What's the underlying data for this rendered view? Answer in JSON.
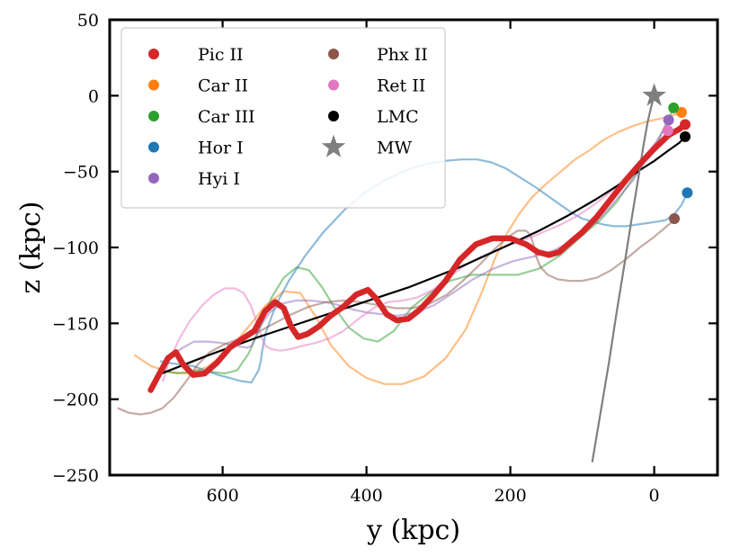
{
  "chart_data": {
    "type": "line",
    "xlabel": "y (kpc)",
    "ylabel": "z (kpc)",
    "xlim": [
      757,
      -88
    ],
    "ylim": [
      -250,
      50
    ],
    "xticks": [
      {
        "value": 600,
        "label": "600"
      },
      {
        "value": 400,
        "label": "400"
      },
      {
        "value": 200,
        "label": "200"
      },
      {
        "value": 0,
        "label": "0"
      }
    ],
    "yticks": [
      {
        "value": 50,
        "label": "50"
      },
      {
        "value": 0,
        "label": "0"
      },
      {
        "value": -50,
        "label": "−50"
      },
      {
        "value": -100,
        "label": "−100"
      },
      {
        "value": -150,
        "label": "−150"
      },
      {
        "value": -200,
        "label": "−200"
      },
      {
        "value": -250,
        "label": "−250"
      }
    ],
    "grid": false,
    "legend_position": "top-left",
    "series": [
      {
        "name": "Pic II",
        "color": "#d62728",
        "marker": "circle",
        "current": [
          -43,
          -19
        ],
        "emphasis": true,
        "x": [
          700,
          690,
          676,
          665,
          655,
          641,
          625,
          608,
          590,
          572,
          556,
          541,
          527,
          515,
          505,
          495,
          482,
          466,
          450,
          432,
          414,
          398,
          386,
          372,
          358,
          342,
          326,
          308,
          290,
          270,
          248,
          225,
          200,
          178,
          162,
          146,
          132,
          120,
          100,
          80,
          60,
          40,
          20,
          0,
          -20,
          -35,
          -43
        ],
        "y": [
          -194,
          -185,
          -173,
          -169,
          -177,
          -184,
          -183,
          -176,
          -166,
          -160,
          -155,
          -142,
          -136,
          -140,
          -152,
          -159,
          -157,
          -152,
          -145,
          -139,
          -131,
          -128,
          -134,
          -144,
          -148,
          -147,
          -141,
          -132,
          -122,
          -108,
          -98,
          -94,
          -94,
          -98,
          -103,
          -105,
          -103,
          -98,
          -90,
          -80,
          -68,
          -56,
          -45,
          -35,
          -26,
          -22,
          -19
        ]
      },
      {
        "name": "Car II",
        "color": "#ff7f0e",
        "marker": "circle",
        "current": [
          -38,
          -11
        ],
        "x": [
          722,
          700,
          676,
          650,
          622,
          598,
          578,
          560,
          540,
          515,
          492,
          470,
          450,
          425,
          400,
          375,
          350,
          320,
          290,
          262,
          240,
          222,
          205,
          188,
          170,
          150,
          130,
          110,
          90,
          70,
          50,
          30,
          10,
          -10,
          -25,
          -38
        ],
        "y": [
          -171,
          -178,
          -182,
          -183,
          -179,
          -170,
          -160,
          -150,
          -138,
          -129,
          -130,
          -146,
          -164,
          -178,
          -186,
          -190,
          -190,
          -185,
          -173,
          -154,
          -130,
          -108,
          -91,
          -78,
          -67,
          -58,
          -50,
          -42,
          -36,
          -29,
          -24,
          -20,
          -17,
          -15,
          -13,
          -11
        ]
      },
      {
        "name": "Car III",
        "color": "#2ca02c",
        "marker": "circle",
        "current": [
          -27,
          -8
        ],
        "x": [
          688,
          676,
          662,
          648,
          632,
          615,
          597,
          580,
          564,
          548,
          532,
          515,
          497,
          480,
          462,
          444,
          424,
          404,
          384,
          362,
          338,
          312,
          284,
          254,
          222,
          190,
          160,
          130,
          100,
          75,
          52,
          32,
          12,
          -5,
          -18,
          -27
        ],
        "y": [
          -180,
          -182,
          -183,
          -182,
          -181,
          -182,
          -183,
          -181,
          -170,
          -153,
          -133,
          -120,
          -113,
          -115,
          -126,
          -140,
          -153,
          -160,
          -162,
          -155,
          -140,
          -130,
          -122,
          -118,
          -118,
          -118,
          -114,
          -105,
          -92,
          -82,
          -70,
          -56,
          -42,
          -30,
          -17,
          -8
        ]
      },
      {
        "name": "Hor I",
        "color": "#1f77b4",
        "marker": "circle",
        "current": [
          -46,
          -64
        ],
        "x": [
          686,
          676,
          660,
          642,
          624,
          606,
          590,
          575,
          560,
          550,
          547,
          545,
          540,
          526,
          508,
          486,
          460,
          430,
          400,
          372,
          344,
          318,
          292,
          268,
          246,
          226,
          206,
          186,
          166,
          148,
          130,
          115,
          100,
          85,
          70,
          55,
          40,
          25,
          10,
          -4,
          -16,
          -28,
          -38,
          -46
        ],
        "y": [
          -175,
          -176,
          -177,
          -178,
          -181,
          -184,
          -186,
          -188,
          -189,
          -181,
          -175,
          -168,
          -156,
          -138,
          -122,
          -106,
          -90,
          -75,
          -63,
          -55,
          -49,
          -45,
          -43,
          -42,
          -42,
          -44,
          -48,
          -54,
          -60,
          -66,
          -72,
          -77,
          -81,
          -83,
          -85,
          -86,
          -86,
          -85,
          -84,
          -83,
          -82,
          -78,
          -72,
          -64
        ]
      },
      {
        "name": "Hyi I",
        "color": "#9467bd",
        "marker": "circle",
        "current": [
          -20,
          -16
        ],
        "x": [
          680,
          670,
          655,
          640,
          620,
          600,
          580,
          566,
          560,
          555,
          548,
          535,
          518,
          498,
          478,
          458,
          438,
          418,
          398,
          378,
          356,
          332,
          306,
          280,
          252,
          224,
          196,
          168,
          140,
          115,
          90,
          68,
          48,
          30,
          15,
          2,
          -10,
          -16,
          -20
        ],
        "y": [
          -179,
          -171,
          -166,
          -162,
          -162,
          -163,
          -165,
          -166,
          -165,
          -160,
          -152,
          -143,
          -137,
          -135,
          -135,
          -136,
          -138,
          -141,
          -143,
          -144,
          -145,
          -143,
          -138,
          -130,
          -121,
          -114,
          -109,
          -106,
          -102,
          -96,
          -87,
          -77,
          -66,
          -56,
          -45,
          -34,
          -25,
          -20,
          -16
        ]
      },
      {
        "name": "Phx II",
        "color": "#8c564b",
        "marker": "circle",
        "current": [
          -28,
          -81
        ],
        "x": [
          745,
          730,
          714,
          700,
          684,
          668,
          652,
          636,
          618,
          598,
          576,
          552,
          528,
          504,
          480,
          456,
          432,
          408,
          384,
          360,
          336,
          312,
          288,
          266,
          244,
          224,
          206,
          190,
          178,
          172,
          168,
          164,
          158,
          148,
          134,
          118,
          100,
          80,
          60,
          40,
          20,
          0,
          -15,
          -25,
          -28
        ],
        "y": [
          -206,
          -209,
          -210,
          -209,
          -206,
          -199,
          -189,
          -178,
          -169,
          -164,
          -160,
          -156,
          -150,
          -144,
          -139,
          -136,
          -135,
          -136,
          -138,
          -140,
          -140,
          -137,
          -131,
          -122,
          -112,
          -102,
          -94,
          -89,
          -89,
          -92,
          -98,
          -106,
          -113,
          -118,
          -121,
          -122,
          -122,
          -120,
          -115,
          -108,
          -100,
          -93,
          -87,
          -83,
          -81
        ]
      },
      {
        "name": "Ret II",
        "color": "#e377c2",
        "marker": "circle",
        "current": [
          -19,
          -23
        ],
        "x": [
          683,
          674,
          660,
          645,
          628,
          612,
          597,
          583,
          571,
          561,
          552,
          545,
          540,
          532,
          520,
          506,
          490,
          472,
          452,
          432,
          411,
          390,
          370,
          350,
          330,
          308,
          286,
          264,
          240,
          216,
          192,
          170,
          150,
          130,
          110,
          90,
          70,
          50,
          32,
          15,
          2,
          -10,
          -16,
          -19
        ],
        "y": [
          -188,
          -174,
          -160,
          -148,
          -138,
          -131,
          -127,
          -127,
          -130,
          -138,
          -150,
          -160,
          -165,
          -167,
          -168,
          -167,
          -165,
          -163,
          -160,
          -155,
          -147,
          -140,
          -136,
          -135,
          -133,
          -128,
          -120,
          -112,
          -106,
          -101,
          -97,
          -93,
          -89,
          -85,
          -80,
          -74,
          -67,
          -59,
          -50,
          -41,
          -33,
          -28,
          -25,
          -23
        ]
      },
      {
        "name": "LMC",
        "color": "#000000",
        "marker": "circle",
        "current": [
          -43,
          -27
        ],
        "x": [
          690,
          620,
          550,
          480,
          410,
          340,
          270,
          210,
          160,
          120,
          80,
          50,
          20,
          0,
          -20,
          -35,
          -43
        ],
        "y": [
          -184,
          -171,
          -159,
          -148,
          -137,
          -126,
          -113,
          -100,
          -89,
          -79,
          -68,
          -59,
          -49,
          -43,
          -36,
          -31,
          -27
        ]
      },
      {
        "name": "MW",
        "color": "#7f7f7f",
        "marker": "star",
        "current": [
          0,
          0
        ],
        "x": [
          86,
          75,
          63,
          52,
          41,
          31,
          22,
          15,
          9,
          4,
          1,
          0
        ],
        "y": [
          -241,
          -210,
          -176,
          -142,
          -110,
          -80,
          -54,
          -33,
          -17,
          -7,
          -2,
          0
        ]
      }
    ]
  }
}
